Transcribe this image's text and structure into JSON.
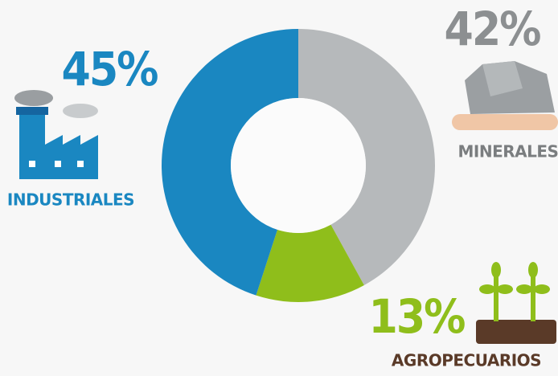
{
  "chart_data": {
    "type": "donut",
    "categories": [
      "MINERALES",
      "AGROPECUARIOS",
      "INDUSTRIALES"
    ],
    "values": [
      42,
      13,
      45
    ],
    "value_labels": [
      "42%",
      "13%",
      "45%"
    ],
    "colors": [
      "#b6b9bb",
      "#8fbe1b",
      "#1a87c1"
    ]
  }
}
